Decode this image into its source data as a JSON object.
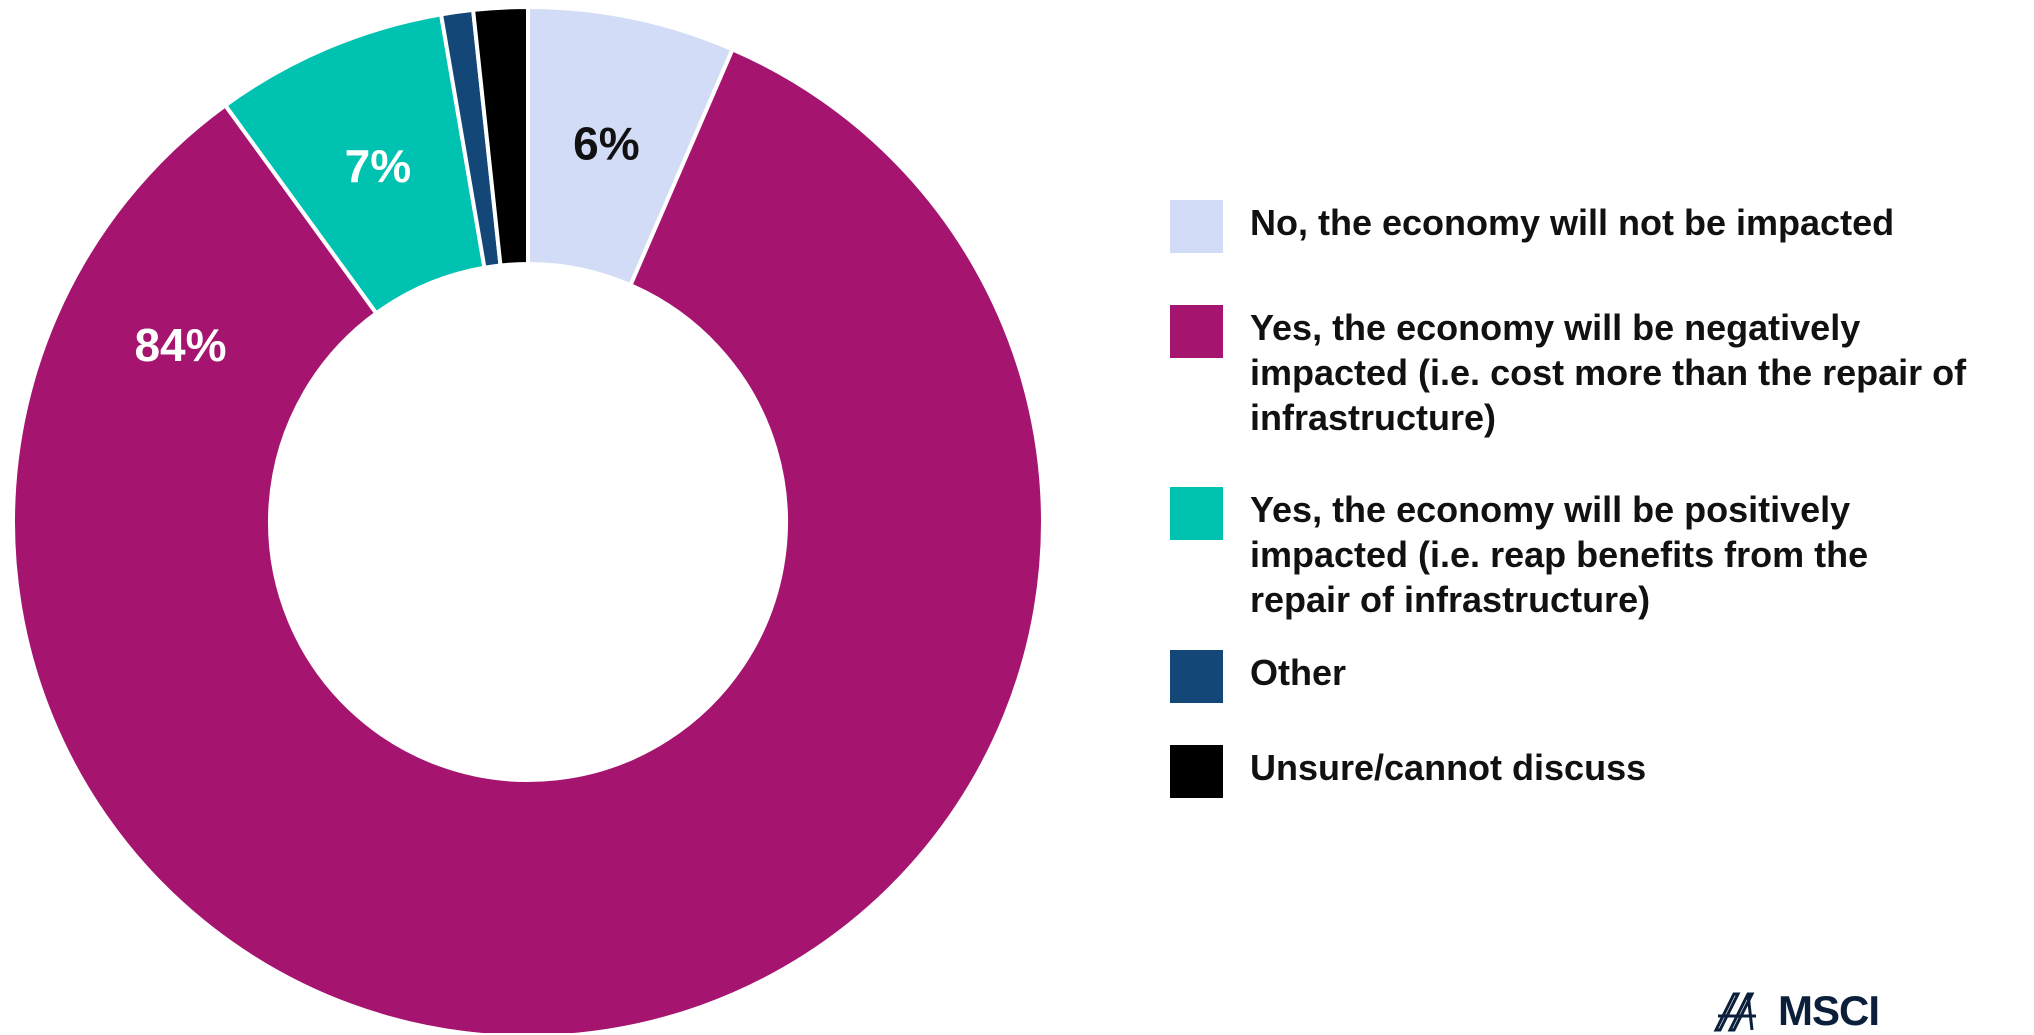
{
  "chart_data": {
    "type": "pie",
    "title": "",
    "donut": true,
    "categories": [
      "No, the economy will not be impacted",
      "Yes, the economy will be negatively impacted (i.e. cost more than the repair of infrastructure)",
      "Yes, the economy will be positively impacted (i.e. reap benefits from the repair of infrastructure)",
      "Other",
      "Unsure/cannot discuss"
    ],
    "values": [
      6.5,
      83.5,
      7.3,
      1.0,
      1.7
    ],
    "data_labels": [
      "6%",
      "84%",
      "7%",
      "",
      ""
    ],
    "colors": [
      "#d3dcf7",
      "#a5156f",
      "#00c2b0",
      "#124778",
      "#000000"
    ],
    "label_colors": [
      "#111111",
      "#ffffff",
      "#ffffff",
      "#ffffff",
      "#ffffff"
    ],
    "legend_position": "right",
    "start_angle": "top",
    "direction": "clockwise"
  },
  "legend": [
    {
      "lines": [
        "No, the economy will not be impacted"
      ],
      "color": "#d3dcf7"
    },
    {
      "lines": [
        "Yes, the economy will be negatively",
        "impacted (i.e. cost more than the repair of",
        "infrastructure)"
      ],
      "color": "#a5156f"
    },
    {
      "lines": [
        "Yes, the economy will be positively",
        "impacted (i.e. reap benefits from the",
        "repair of infrastructure)"
      ],
      "color": "#00c2b0"
    },
    {
      "lines": [
        "Other"
      ],
      "color": "#124778"
    },
    {
      "lines": [
        "Unsure/cannot discuss"
      ],
      "color": "#000000"
    }
  ],
  "logo": {
    "text": "MSCI",
    "icon": "msci-logo-icon"
  }
}
